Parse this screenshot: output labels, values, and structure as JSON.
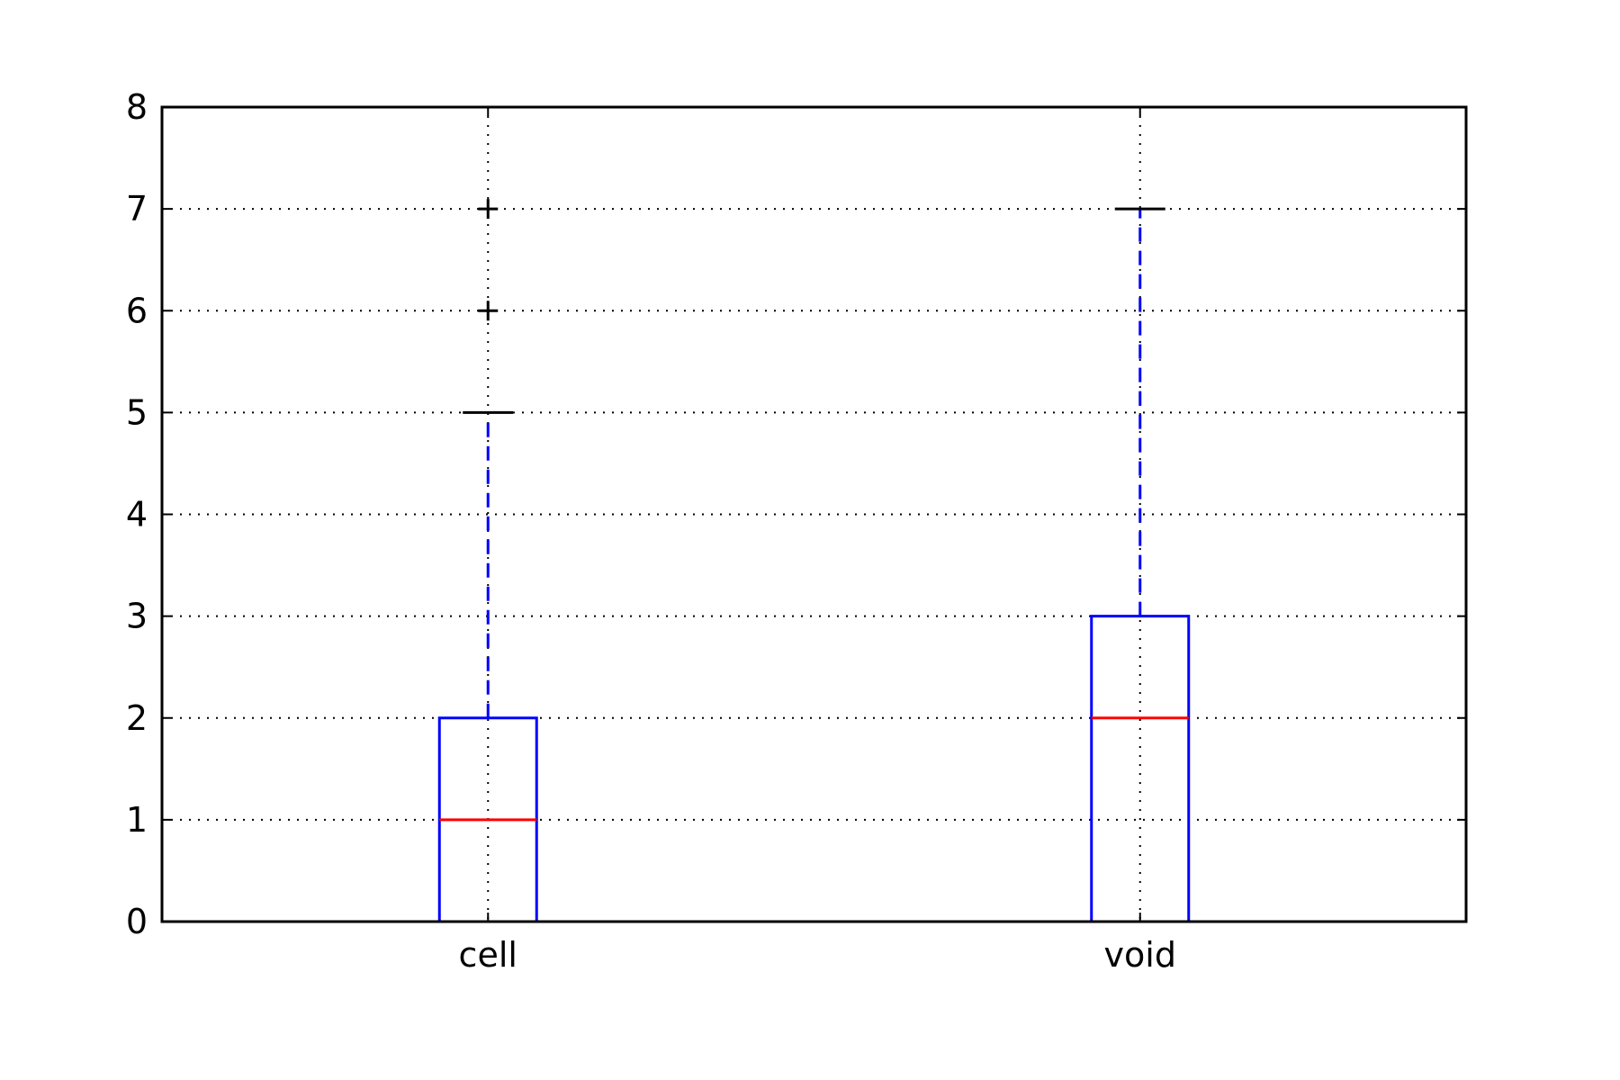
{
  "chart_data": {
    "type": "box",
    "title": "",
    "xlabel": "",
    "ylabel": "",
    "ylim": [
      0,
      8
    ],
    "yticks": [
      "0",
      "1",
      "2",
      "3",
      "4",
      "5",
      "6",
      "7",
      "8"
    ],
    "grid": true,
    "categories": [
      "cell",
      "void"
    ],
    "boxes": [
      {
        "label": "cell",
        "whisker_low": 0,
        "q1": 0,
        "median": 1,
        "q3": 2,
        "whisker_high": 5,
        "outliers": [
          6,
          7
        ]
      },
      {
        "label": "void",
        "whisker_low": 0,
        "q1": 0,
        "median": 2,
        "q3": 3,
        "whisker_high": 7,
        "outliers": []
      }
    ],
    "colors": {
      "box": "#0000ff",
      "median": "#ff0000",
      "whisker_cap": "#000000",
      "outlier": "#000000",
      "grid": "#000000"
    }
  }
}
